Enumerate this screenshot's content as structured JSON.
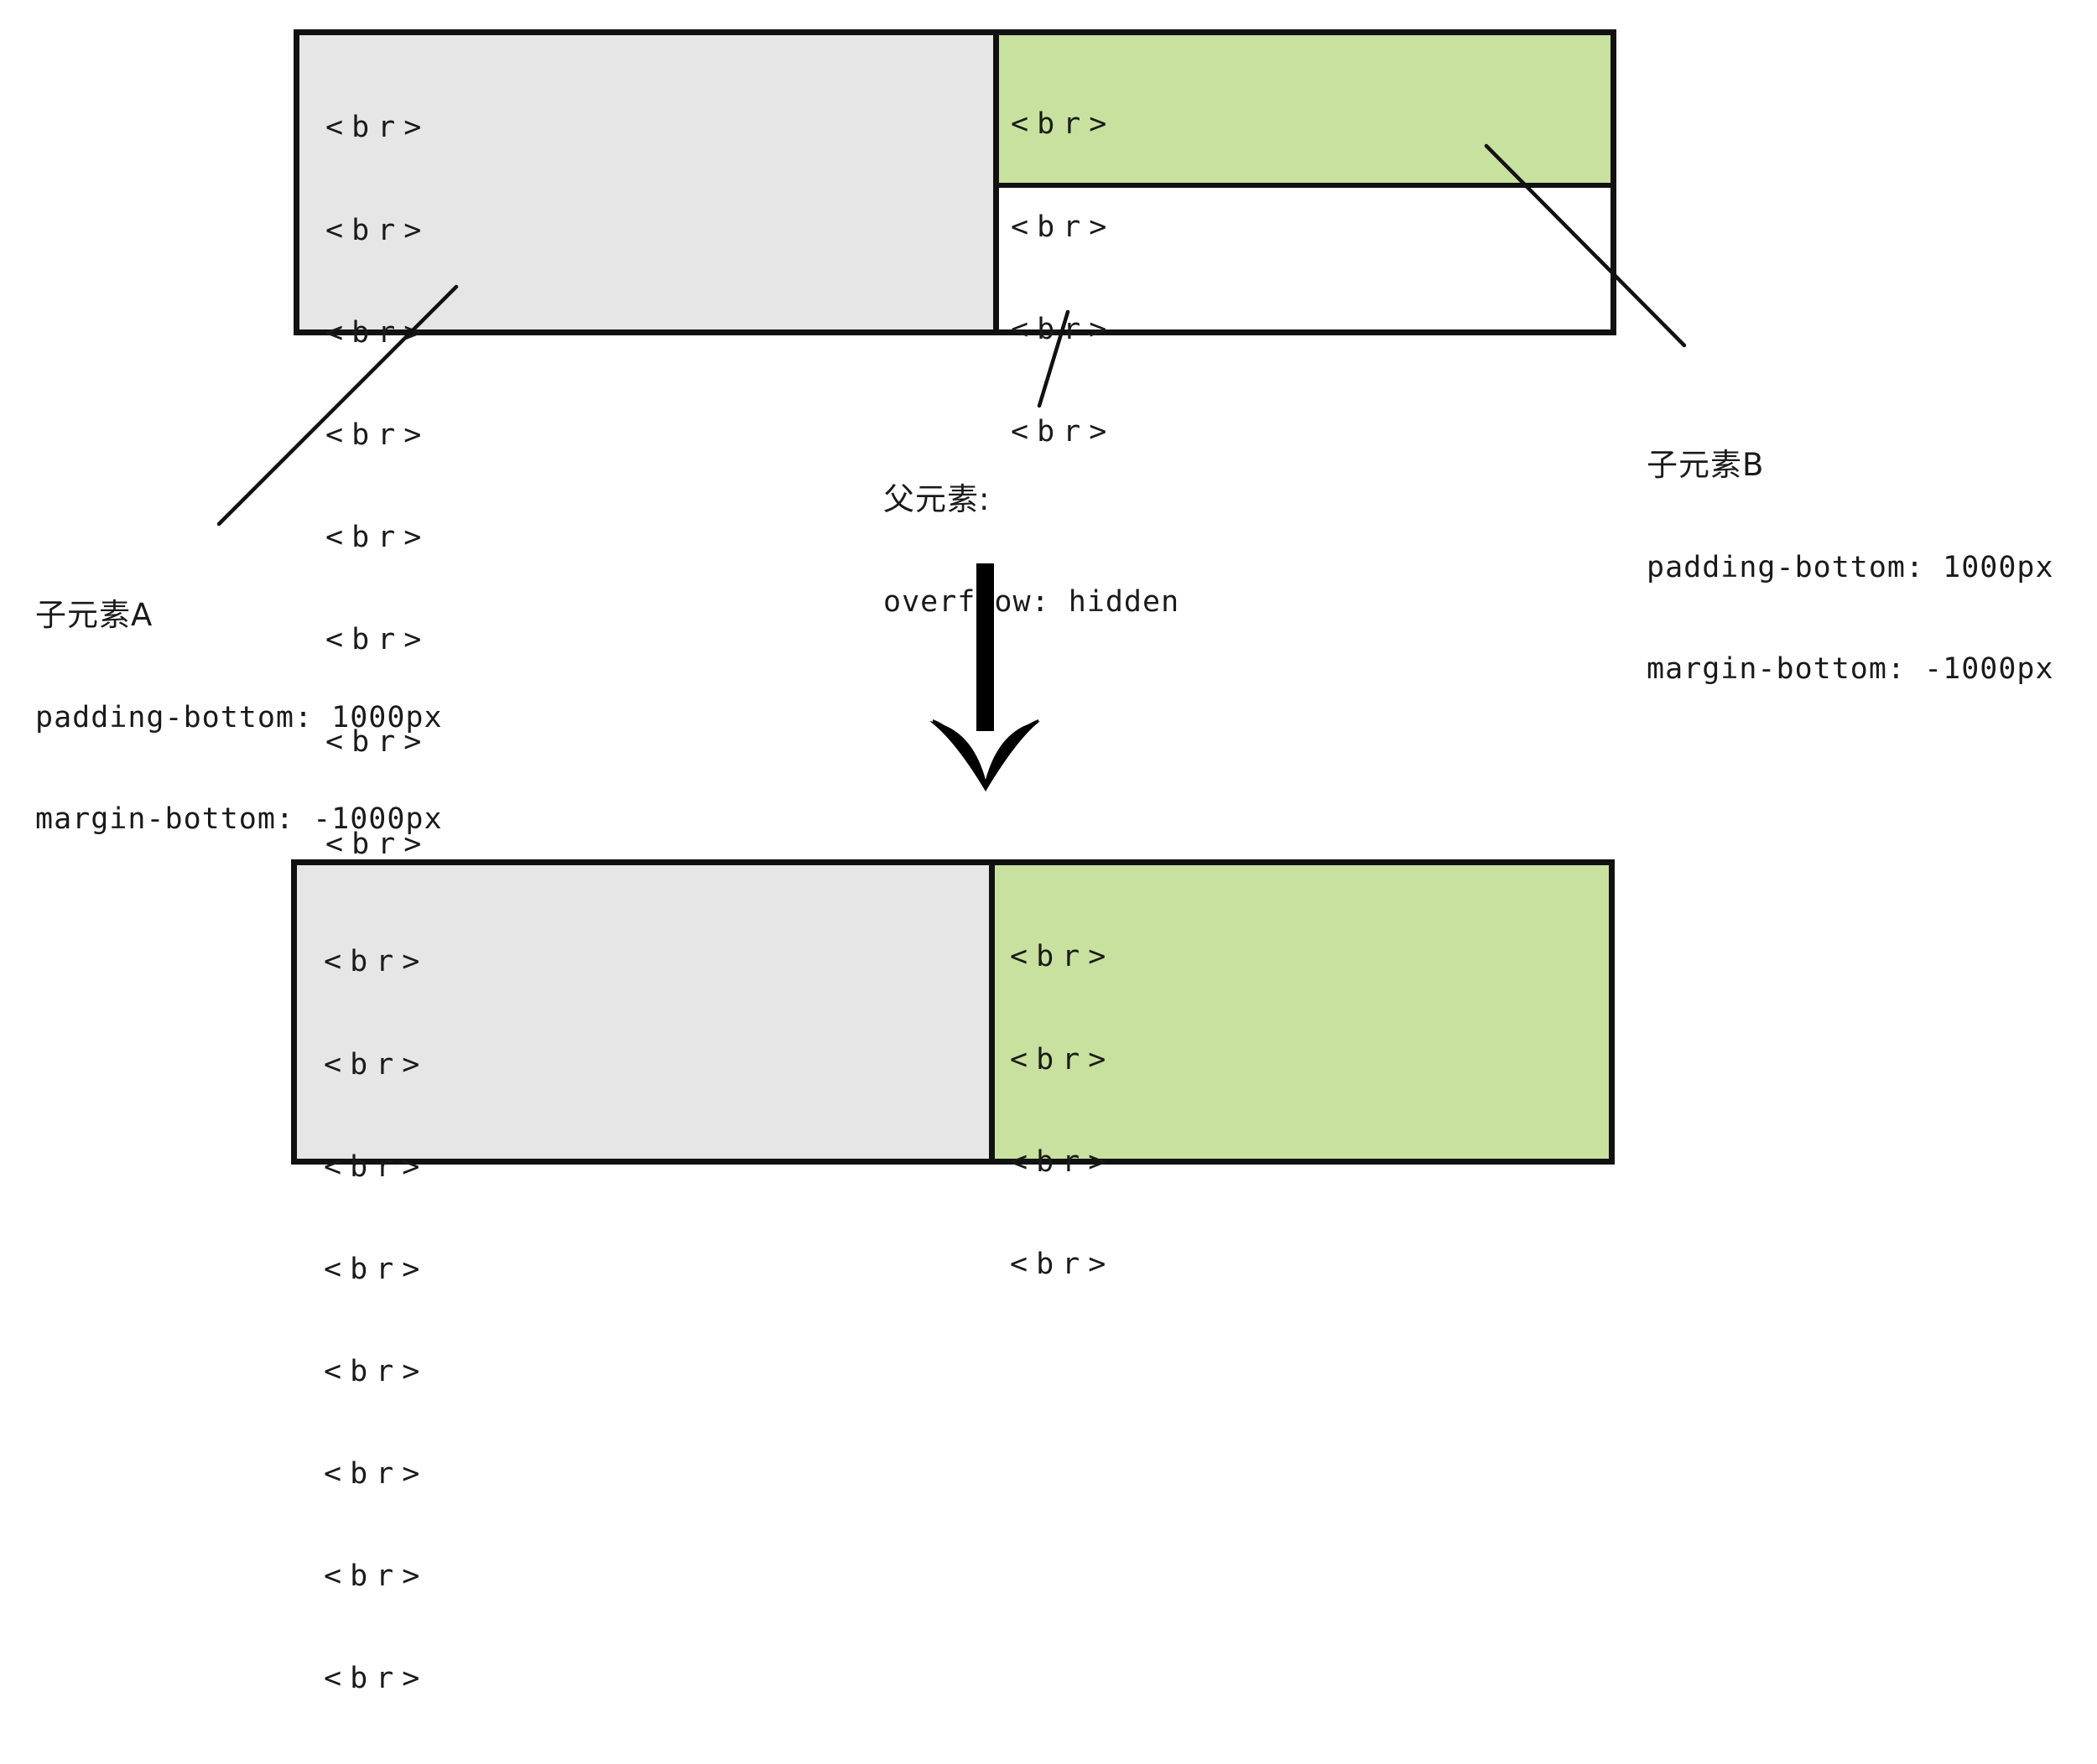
{
  "diagram": {
    "before": {
      "child_a_lines": [
        "<br>",
        "<br>",
        "<br>",
        "<br>",
        "<br>",
        "<br>",
        "<br>",
        "<br>"
      ],
      "child_b_lines": [
        "<br>",
        "<br>",
        "<br>",
        "<br>"
      ]
    },
    "after": {
      "child_a_lines": [
        "<br>",
        "<br>",
        "<br>",
        "<br>",
        "<br>",
        "<br>",
        "<br>",
        "<br>"
      ],
      "child_b_lines": [
        "<br>",
        "<br>",
        "<br>",
        "<br>"
      ]
    },
    "labels": {
      "child_a": {
        "title": "子元素A",
        "padding": "padding-bottom: 1000px",
        "margin": "margin-bottom: -1000px"
      },
      "parent": {
        "title": "父元素:",
        "overflow": "overflow: hidden"
      },
      "child_b": {
        "title": "子元素B",
        "padding": "padding-bottom: 1000px",
        "margin": "margin-bottom: -1000px"
      }
    },
    "colors": {
      "child_a_bg": "#e6e6e6",
      "child_b_bg": "#c9e19e",
      "parent_bg": "#ffffff",
      "stroke": "#111111"
    }
  }
}
